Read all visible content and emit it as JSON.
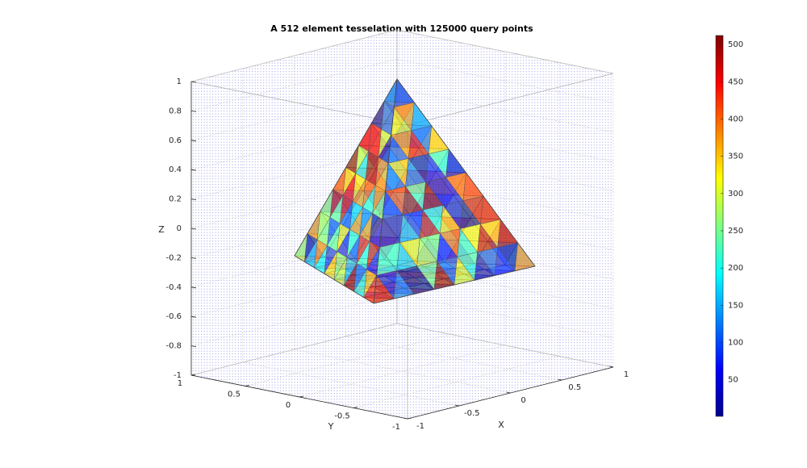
{
  "chart_data": {
    "type": "tessellation3d",
    "title": "A 512 element tesselation with 125000 query points",
    "xlabel": "X",
    "ylabel": "Y",
    "zlabel": "Z",
    "xlim": [
      -1,
      1
    ],
    "ylim": [
      -1,
      1
    ],
    "zlim": [
      -1,
      1
    ],
    "xticks": [
      -1,
      -0.5,
      0,
      0.5,
      1
    ],
    "yticks": [
      -1,
      -0.5,
      0,
      0.5,
      1
    ],
    "zticks": [
      -1,
      -0.8,
      -0.6,
      -0.4,
      -0.2,
      0,
      0.2,
      0.4,
      0.6,
      0.8,
      1
    ],
    "grid": true,
    "colorbar": {
      "colormap": "jet",
      "clim": [
        1,
        512
      ],
      "ticks": [
        50,
        100,
        150,
        200,
        250,
        300,
        350,
        400,
        450,
        500
      ]
    }
  }
}
